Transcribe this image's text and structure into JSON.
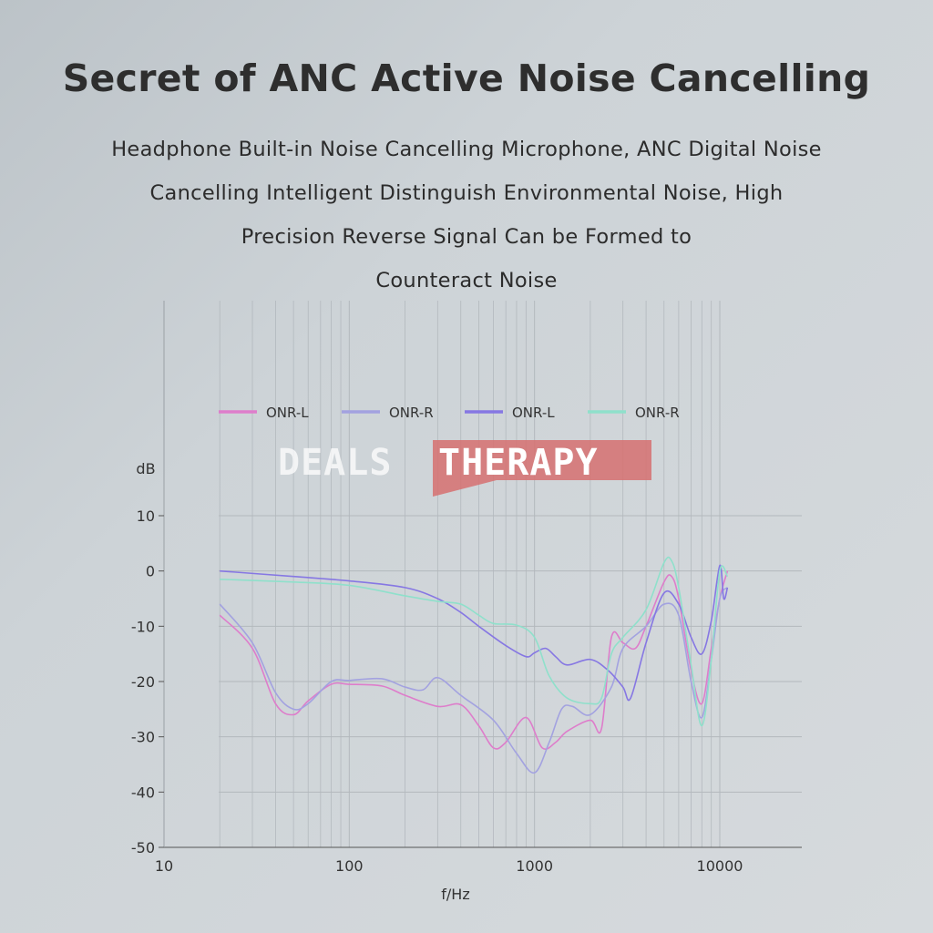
{
  "header": {
    "title": "Secret of ANC Active Noise Cancelling",
    "subtitle_lines": [
      "Headphone Built-in Noise Cancelling Microphone, ANC Digital Noise",
      "Cancelling Intelligent Distinguish Environmental Noise, High",
      "Precision Reverse Signal Can be Formed to",
      "Counteract Noise"
    ]
  },
  "watermark": {
    "left": "DEALS",
    "right": "THERAPY"
  },
  "chart_data": {
    "type": "line",
    "xlabel": "f/Hz",
    "ylabel": "dB",
    "x_scale": "log",
    "xlim": [
      10,
      25000
    ],
    "ylim": [
      -50,
      10
    ],
    "x_ticks": [
      10,
      100,
      1000,
      10000
    ],
    "y_ticks": [
      10,
      0,
      -10,
      -20,
      -30,
      -40,
      -50
    ],
    "grid": true,
    "legend_position": "top",
    "series": [
      {
        "name": "ONR-L",
        "color": "#de7dcb",
        "points": [
          [
            20,
            -8
          ],
          [
            30,
            -14
          ],
          [
            40,
            -24
          ],
          [
            50,
            -26
          ],
          [
            60,
            -23.5
          ],
          [
            80,
            -20.5
          ],
          [
            100,
            -20.5
          ],
          [
            150,
            -20.8
          ],
          [
            200,
            -22.5
          ],
          [
            300,
            -24.5
          ],
          [
            400,
            -24.2
          ],
          [
            500,
            -28
          ],
          [
            600,
            -32
          ],
          [
            700,
            -31
          ],
          [
            900,
            -26.5
          ],
          [
            1100,
            -32
          ],
          [
            1300,
            -31
          ],
          [
            1500,
            -29
          ],
          [
            2000,
            -27
          ],
          [
            2300,
            -28.5
          ],
          [
            2600,
            -12
          ],
          [
            3000,
            -13
          ],
          [
            3500,
            -14
          ],
          [
            4000,
            -10
          ],
          [
            5000,
            -2
          ],
          [
            5500,
            -1
          ],
          [
            6000,
            -5
          ],
          [
            7000,
            -18
          ],
          [
            8000,
            -24
          ],
          [
            9000,
            -14
          ],
          [
            10000,
            -5
          ],
          [
            11000,
            0
          ]
        ]
      },
      {
        "name": "ONR-R",
        "color": "#a3a2e0",
        "points": [
          [
            20,
            -6
          ],
          [
            30,
            -13
          ],
          [
            40,
            -22
          ],
          [
            50,
            -25
          ],
          [
            60,
            -24
          ],
          [
            80,
            -20
          ],
          [
            100,
            -19.8
          ],
          [
            150,
            -19.5
          ],
          [
            200,
            -21
          ],
          [
            250,
            -21.5
          ],
          [
            300,
            -19.3
          ],
          [
            400,
            -22.5
          ],
          [
            600,
            -27
          ],
          [
            800,
            -33
          ],
          [
            1000,
            -36.5
          ],
          [
            1200,
            -31
          ],
          [
            1400,
            -25
          ],
          [
            1600,
            -24.5
          ],
          [
            2000,
            -26
          ],
          [
            2600,
            -21
          ],
          [
            3000,
            -14
          ],
          [
            4000,
            -10
          ],
          [
            5000,
            -6
          ],
          [
            6000,
            -8
          ],
          [
            7000,
            -20
          ],
          [
            8000,
            -26.5
          ],
          [
            9000,
            -16
          ],
          [
            10000,
            -5
          ],
          [
            11000,
            -3
          ]
        ]
      },
      {
        "name": "ONR-L",
        "color": "#8677e3",
        "points": [
          [
            20,
            0
          ],
          [
            50,
            -1
          ],
          [
            100,
            -1.8
          ],
          [
            200,
            -3
          ],
          [
            300,
            -5
          ],
          [
            400,
            -7.5
          ],
          [
            500,
            -10
          ],
          [
            700,
            -13.5
          ],
          [
            900,
            -15.5
          ],
          [
            1000,
            -14.8
          ],
          [
            1150,
            -14
          ],
          [
            1300,
            -15.5
          ],
          [
            1500,
            -17
          ],
          [
            2000,
            -16
          ],
          [
            2500,
            -18
          ],
          [
            3000,
            -21
          ],
          [
            3300,
            -23
          ],
          [
            4000,
            -13
          ],
          [
            5000,
            -4
          ],
          [
            6000,
            -6
          ],
          [
            7000,
            -12
          ],
          [
            8000,
            -15
          ],
          [
            9000,
            -9
          ],
          [
            10000,
            1
          ],
          [
            10500,
            -5
          ],
          [
            11000,
            -3
          ]
        ]
      },
      {
        "name": "ONR-R",
        "color": "#8fe0cb",
        "points": [
          [
            20,
            -1.5
          ],
          [
            50,
            -2
          ],
          [
            100,
            -2.6
          ],
          [
            200,
            -4.5
          ],
          [
            300,
            -5.5
          ],
          [
            400,
            -6
          ],
          [
            500,
            -8
          ],
          [
            600,
            -9.5
          ],
          [
            800,
            -9.8
          ],
          [
            1000,
            -12
          ],
          [
            1200,
            -19
          ],
          [
            1500,
            -23
          ],
          [
            2000,
            -24
          ],
          [
            2300,
            -23
          ],
          [
            2600,
            -15
          ],
          [
            3000,
            -12
          ],
          [
            4000,
            -7
          ],
          [
            5000,
            1.5
          ],
          [
            5500,
            1.8
          ],
          [
            6000,
            -3
          ],
          [
            7000,
            -17
          ],
          [
            8000,
            -28
          ],
          [
            9000,
            -16
          ],
          [
            10000,
            0
          ],
          [
            11000,
            -1
          ]
        ]
      }
    ]
  }
}
